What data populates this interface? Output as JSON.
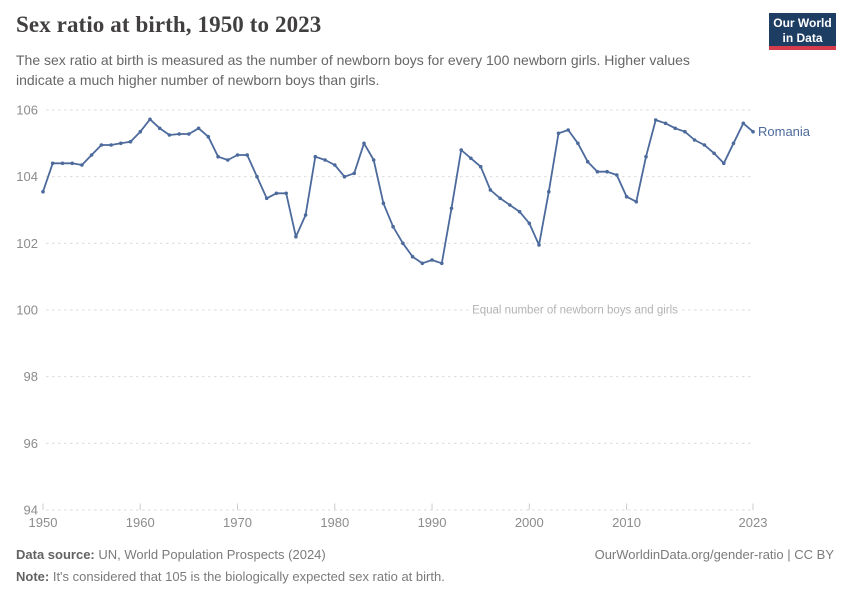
{
  "header": {
    "title": "Sex ratio at birth, 1950 to 2023",
    "subtitle_lines": [
      "The sex ratio at birth is measured as the number of newborn boys for every 100 newborn girls. Higher values",
      "indicate a much higher number of newborn boys than girls."
    ],
    "logo_line1": "Our World",
    "logo_line2": "in Data",
    "logo_bg": "#1d3d63",
    "logo_bar": "#d73c4c"
  },
  "chart_data": {
    "type": "line",
    "title": "Sex ratio at birth, 1950 to 2023",
    "xlabel": "",
    "ylabel": "",
    "xlim": [
      1950,
      2023
    ],
    "ylim": [
      94,
      106.35
    ],
    "x_ticks": [
      1950,
      1960,
      1970,
      1980,
      1990,
      2000,
      2010,
      2023
    ],
    "y_ticks": [
      94,
      96,
      98,
      100,
      102,
      104,
      106
    ],
    "grid": "horizontal-dashed",
    "legend_position": "end-of-line-label",
    "annotation": {
      "text": "Equal number of newborn boys and girls",
      "y_value": 100
    },
    "series": [
      {
        "name": "Romania",
        "color": "#4c6a9c",
        "years": [
          1950,
          1951,
          1952,
          1953,
          1954,
          1955,
          1956,
          1957,
          1958,
          1959,
          1960,
          1961,
          1962,
          1963,
          1964,
          1965,
          1966,
          1967,
          1968,
          1969,
          1970,
          1971,
          1972,
          1973,
          1974,
          1975,
          1976,
          1977,
          1978,
          1979,
          1980,
          1981,
          1982,
          1983,
          1984,
          1985,
          1986,
          1987,
          1988,
          1989,
          1990,
          1991,
          1992,
          1993,
          1994,
          1995,
          1996,
          1997,
          1998,
          1999,
          2000,
          2001,
          2002,
          2003,
          2004,
          2005,
          2006,
          2007,
          2008,
          2009,
          2010,
          2011,
          2012,
          2013,
          2014,
          2015,
          2016,
          2017,
          2018,
          2019,
          2020,
          2021,
          2022,
          2023
        ],
        "values": [
          103.55,
          104.4,
          104.4,
          104.4,
          104.35,
          104.65,
          104.95,
          104.95,
          105.0,
          105.05,
          105.35,
          105.72,
          105.45,
          105.25,
          105.28,
          105.28,
          105.45,
          105.2,
          104.6,
          104.5,
          104.65,
          104.65,
          104.0,
          103.35,
          103.5,
          103.5,
          102.2,
          102.85,
          104.6,
          104.5,
          104.35,
          104.0,
          104.1,
          105.0,
          104.5,
          103.2,
          102.5,
          102.0,
          101.6,
          101.4,
          101.5,
          101.4,
          103.05,
          104.8,
          104.55,
          104.3,
          103.6,
          103.35,
          103.15,
          102.95,
          102.6,
          101.95,
          103.55,
          105.3,
          105.4,
          105.0,
          104.45,
          104.15,
          104.15,
          104.05,
          103.4,
          103.25,
          104.6,
          105.7,
          105.6,
          105.45,
          105.35,
          105.1,
          104.95,
          104.7,
          104.4,
          105.0,
          105.6,
          105.35
        ]
      }
    ],
    "colors": {
      "line": "#4c6a9c",
      "grid": "#dcdcdc",
      "tick_label": "#8c8c8c",
      "annotation": "#b3b3b3",
      "axis_tick": "#cccccc"
    }
  },
  "footer": {
    "data_source_label": "Data source:",
    "data_source_value": " UN, World Population Prospects (2024)",
    "attribution": "OurWorldinData.org/gender-ratio | CC BY",
    "note_label": "Note:",
    "note_value": " It's considered that 105 is the biologically expected sex ratio at birth."
  }
}
